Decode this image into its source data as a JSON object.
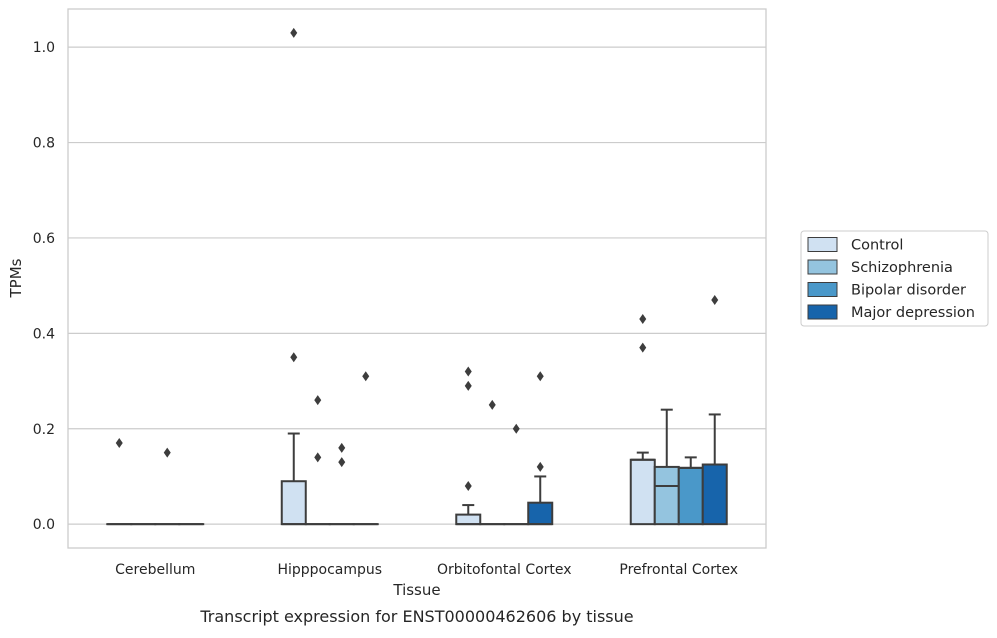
{
  "chart_data": {
    "type": "box",
    "caption": "Transcript expression for ENST00000462606 by tissue",
    "xlabel": "Tissue",
    "ylabel": "TPMs",
    "ylim": [
      -0.05,
      1.08
    ],
    "yticks": [
      0.0,
      0.2,
      0.4,
      0.6,
      0.8,
      1.0
    ],
    "ytick_labels": [
      "0.0",
      "0.2",
      "0.4",
      "0.6",
      "0.8",
      "1.0"
    ],
    "grid": "horizontal",
    "legend_position": "right",
    "categories": [
      "Cerebellum",
      "Hipppocampus",
      "Orbitofontal Cortex",
      "Prefrontal Cortex"
    ],
    "series": [
      {
        "name": "Control",
        "color": "#d0e1f2",
        "boxes": [
          {
            "q1": 0,
            "median": 0,
            "q3": 0,
            "whislo": 0,
            "whishi": 0,
            "fliers": [
              0.17
            ]
          },
          {
            "q1": 0,
            "median": 0,
            "q3": 0.09,
            "whislo": 0,
            "whishi": 0.19,
            "fliers": [
              0.35,
              1.03
            ]
          },
          {
            "q1": 0,
            "median": 0,
            "q3": 0.02,
            "whislo": 0,
            "whishi": 0.04,
            "fliers": [
              0.08,
              0.29,
              0.32
            ]
          },
          {
            "q1": 0,
            "median": 0.135,
            "q3": 0.135,
            "whislo": 0,
            "whishi": 0.15,
            "fliers": [
              0.37,
              0.43
            ]
          }
        ]
      },
      {
        "name": "Schizophrenia",
        "color": "#94c4df",
        "boxes": [
          {
            "q1": 0,
            "median": 0,
            "q3": 0,
            "whislo": 0,
            "whishi": 0,
            "fliers": []
          },
          {
            "q1": 0,
            "median": 0,
            "q3": 0,
            "whislo": 0,
            "whishi": 0,
            "fliers": [
              0.14,
              0.26
            ]
          },
          {
            "q1": 0,
            "median": 0,
            "q3": 0,
            "whislo": 0,
            "whishi": 0,
            "fliers": [
              0.25
            ]
          },
          {
            "q1": 0,
            "median": 0.08,
            "q3": 0.12,
            "whislo": 0,
            "whishi": 0.24,
            "fliers": []
          }
        ]
      },
      {
        "name": "Bipolar disorder",
        "color": "#4a98c9",
        "boxes": [
          {
            "q1": 0,
            "median": 0,
            "q3": 0,
            "whislo": 0,
            "whishi": 0,
            "fliers": [
              0.15
            ]
          },
          {
            "q1": 0,
            "median": 0,
            "q3": 0,
            "whislo": 0,
            "whishi": 0,
            "fliers": [
              0.13,
              0.16
            ]
          },
          {
            "q1": 0,
            "median": 0,
            "q3": 0,
            "whislo": 0,
            "whishi": 0,
            "fliers": [
              0.2
            ]
          },
          {
            "q1": 0,
            "median": 0.118,
            "q3": 0.118,
            "whislo": 0,
            "whishi": 0.14,
            "fliers": []
          }
        ]
      },
      {
        "name": "Major depression",
        "color": "#1764ab",
        "boxes": [
          {
            "q1": 0,
            "median": 0,
            "q3": 0,
            "whislo": 0,
            "whishi": 0,
            "fliers": []
          },
          {
            "q1": 0,
            "median": 0,
            "q3": 0,
            "whislo": 0,
            "whishi": 0,
            "fliers": [
              0.31
            ]
          },
          {
            "q1": 0,
            "median": 0,
            "q3": 0.045,
            "whislo": 0,
            "whishi": 0.1,
            "fliers": [
              0.12,
              0.31
            ]
          },
          {
            "q1": 0,
            "median": 0.125,
            "q3": 0.125,
            "whislo": 0,
            "whishi": 0.23,
            "fliers": [
              0.47
            ]
          }
        ]
      }
    ]
  }
}
